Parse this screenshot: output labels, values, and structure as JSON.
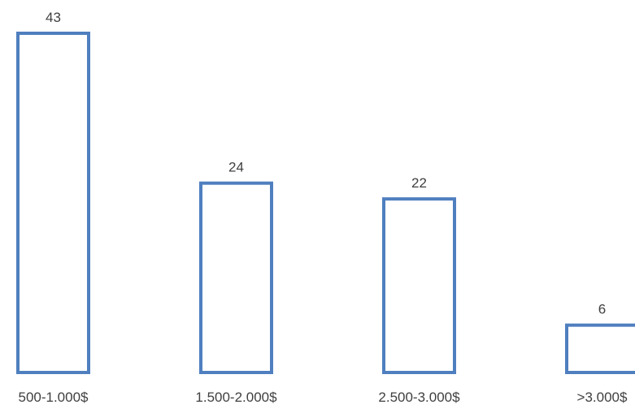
{
  "chart_data": {
    "type": "bar",
    "categories": [
      "500-1.000$",
      "1.500-2.000$",
      "2.500-3.000$",
      ">3.000$"
    ],
    "values": [
      43,
      24,
      22,
      6
    ],
    "data_labels": [
      "43",
      "24",
      "22",
      "6"
    ],
    "ylim": [
      0,
      43
    ],
    "grid": false,
    "legend": "none",
    "bar_style": "outline",
    "bar_outline_color": "#4f7fbf",
    "bar_fill_color": "#ffffff",
    "label_color": "#404040"
  }
}
